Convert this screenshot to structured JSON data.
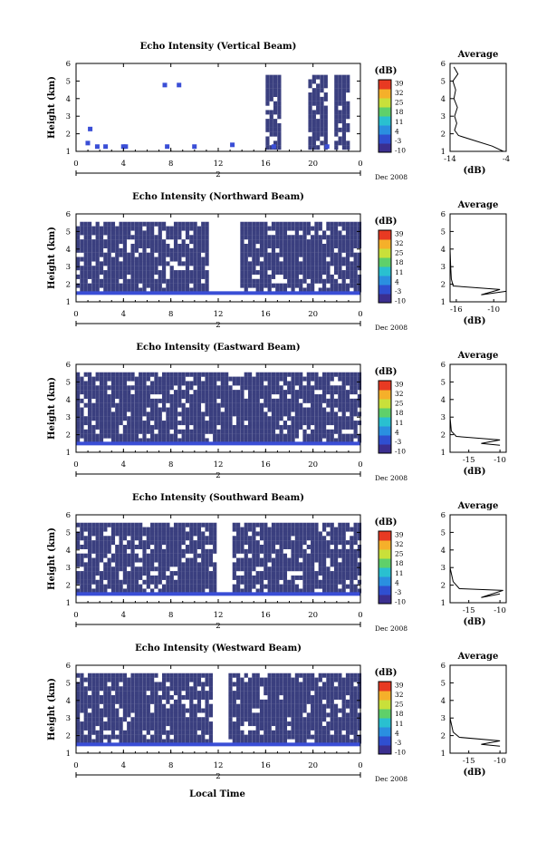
{
  "figure": {
    "xlabel_bottom": "Local Time",
    "date_label": "Dec 2008",
    "day_label": "2",
    "ylabel": "Height (km)",
    "avg_title": "Average",
    "avg_xlabel": "(dB)",
    "colorbar_label": "(dB)"
  },
  "colorbar": {
    "ticks": [
      "39",
      "32",
      "25",
      "18",
      "11",
      "4",
      "-3",
      "-10"
    ],
    "colors": [
      "#3b2f8f",
      "#2f4fd0",
      "#2a8fe0",
      "#29c0d0",
      "#5fd06a",
      "#c9e03a",
      "#f5b02a",
      "#e83a22"
    ]
  },
  "colors": {
    "field": "#3a3f7f",
    "strong": "#3a4ed6",
    "background": "#ffffff"
  },
  "chart_data": [
    {
      "type": "heatmap",
      "title": "Echo Intensity (Vertical Beam)",
      "xlabel": "",
      "ylabel": "Height (km)",
      "xlim": [
        0,
        24
      ],
      "ylim": [
        1,
        6
      ],
      "x_ticks": [
        "0",
        "4",
        "8",
        "12",
        "16",
        "20",
        "0"
      ],
      "y_ticks": [
        "1",
        "2",
        "3",
        "4",
        "5",
        "6"
      ],
      "average": {
        "x_ticks": [
          "-14",
          "-4"
        ],
        "xlim": [
          -14,
          -4
        ],
        "profile": [
          [
            -4.5,
            1.0
          ],
          [
            -6.5,
            1.3
          ],
          [
            -9.5,
            1.6
          ],
          [
            -12.5,
            1.9
          ],
          [
            -13.2,
            2.2
          ],
          [
            -12.8,
            2.6
          ],
          [
            -13.2,
            3.0
          ],
          [
            -12.7,
            3.5
          ],
          [
            -13.3,
            4.0
          ],
          [
            -13.0,
            4.5
          ],
          [
            -13.5,
            5.0
          ],
          [
            -12.6,
            5.4
          ],
          [
            -13.3,
            5.8
          ]
        ]
      }
    },
    {
      "type": "heatmap",
      "title": "Echo Intensity (Northward Beam)",
      "xlabel": "",
      "ylabel": "Height (km)",
      "xlim": [
        0,
        24
      ],
      "ylim": [
        1,
        6
      ],
      "x_ticks": [
        "0",
        "4",
        "8",
        "12",
        "16",
        "20",
        "0"
      ],
      "y_ticks": [
        "1",
        "2",
        "3",
        "4",
        "5",
        "6"
      ],
      "average": {
        "x_ticks": [
          "-16",
          "-10"
        ],
        "xlim": [
          -17,
          -8
        ],
        "profile": [
          [
            -8,
            1.6
          ],
          [
            -12,
            1.4
          ],
          [
            -9,
            1.7
          ],
          [
            -16.5,
            1.9
          ],
          [
            -16.8,
            2.3
          ],
          [
            -16.9,
            3.0
          ],
          [
            -17,
            4.0
          ],
          [
            -17,
            5.0
          ]
        ]
      }
    },
    {
      "type": "heatmap",
      "title": "Echo Intensity (Eastward Beam)",
      "xlabel": "",
      "ylabel": "Height (km)",
      "xlim": [
        0,
        24
      ],
      "ylim": [
        1,
        6
      ],
      "x_ticks": [
        "0",
        "4",
        "8",
        "12",
        "16",
        "20",
        "0"
      ],
      "y_ticks": [
        "1",
        "2",
        "3",
        "4",
        "5",
        "6"
      ],
      "average": {
        "x_ticks": [
          "-15",
          "-10"
        ],
        "xlim": [
          -18,
          -9
        ],
        "profile": [
          [
            -10,
            1.4
          ],
          [
            -13,
            1.5
          ],
          [
            -10,
            1.7
          ],
          [
            -17,
            1.9
          ],
          [
            -17.8,
            2.2
          ],
          [
            -18,
            3.0
          ],
          [
            -18,
            4.0
          ],
          [
            -18,
            5.0
          ]
        ]
      }
    },
    {
      "type": "heatmap",
      "title": "Echo Intensity (Southward Beam)",
      "xlabel": "",
      "ylabel": "Height (km)",
      "xlim": [
        0,
        24
      ],
      "ylim": [
        1,
        6
      ],
      "x_ticks": [
        "0",
        "4",
        "8",
        "12",
        "16",
        "20",
        "0"
      ],
      "y_ticks": [
        "1",
        "2",
        "3",
        "4",
        "5",
        "6"
      ],
      "average": {
        "x_ticks": [
          "-15",
          "-10"
        ],
        "xlim": [
          -18,
          -9
        ],
        "profile": [
          [
            -10,
            1.5
          ],
          [
            -13,
            1.3
          ],
          [
            -9.5,
            1.7
          ],
          [
            -16.5,
            1.8
          ],
          [
            -17.5,
            2.2
          ],
          [
            -18,
            3.0
          ],
          [
            -18,
            4.0
          ],
          [
            -18,
            5.0
          ]
        ]
      }
    },
    {
      "type": "heatmap",
      "title": "Echo Intensity (Westward Beam)",
      "xlabel": "",
      "ylabel": "Height (km)",
      "xlim": [
        0,
        24
      ],
      "ylim": [
        1,
        6
      ],
      "x_ticks": [
        "0",
        "4",
        "8",
        "12",
        "16",
        "20",
        "0"
      ],
      "y_ticks": [
        "1",
        "2",
        "3",
        "4",
        "5",
        "6"
      ],
      "average": {
        "x_ticks": [
          "-15",
          "-10"
        ],
        "xlim": [
          -18,
          -9
        ],
        "profile": [
          [
            -10,
            1.4
          ],
          [
            -13,
            1.5
          ],
          [
            -10,
            1.7
          ],
          [
            -16.5,
            1.9
          ],
          [
            -17.5,
            2.2
          ],
          [
            -18,
            3.0
          ],
          [
            -18,
            4.0
          ],
          [
            -18,
            5.0
          ]
        ]
      }
    }
  ]
}
